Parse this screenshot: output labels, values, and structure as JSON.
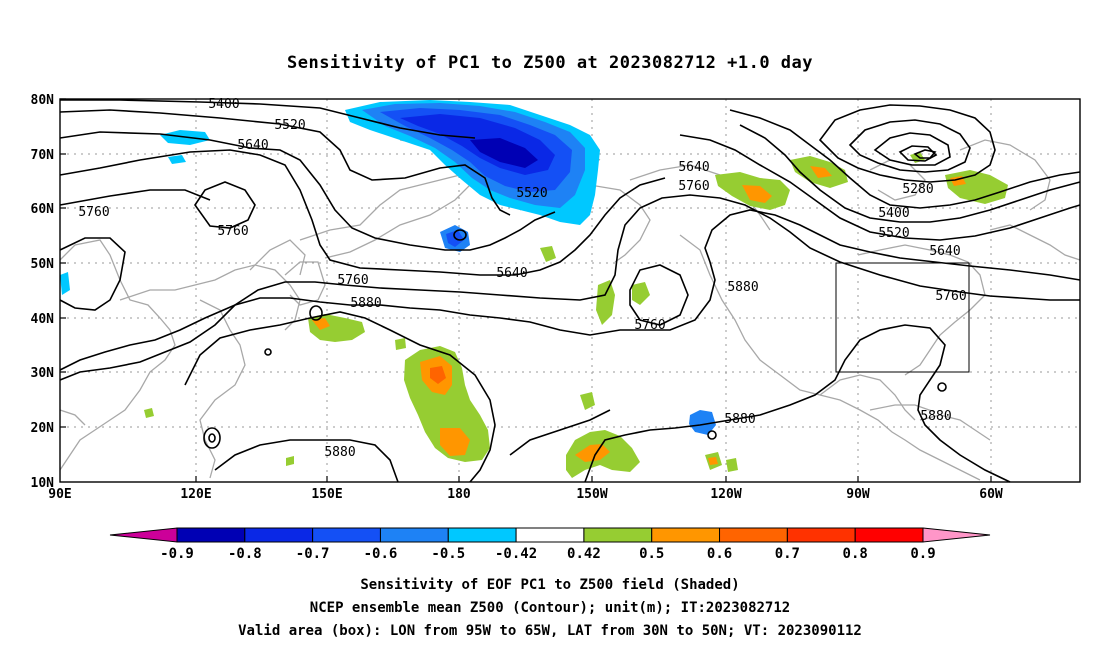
{
  "title": "Sensitivity of PC1 to Z500 at 2023082712 +1.0 day",
  "map": {
    "lon_labels": [
      "90E",
      "120E",
      "150E",
      "180",
      "150W",
      "120W",
      "90W",
      "60W"
    ],
    "lat_labels": [
      "80N",
      "70N",
      "60N",
      "50N",
      "40N",
      "30N",
      "20N",
      "10N"
    ],
    "contour_labels": [
      "5400",
      "5520",
      "5640",
      "5760",
      "5760",
      "5520",
      "5640",
      "5760",
      "5880",
      "5760",
      "5880",
      "5640",
      "5760",
      "5280",
      "5400",
      "5520",
      "5640",
      "5760",
      "5880",
      "5880",
      "5880"
    ],
    "box": {
      "lon_west": "95W",
      "lon_east": "65W",
      "lat_south": "30N",
      "lat_north": "50N"
    }
  },
  "colorbar": {
    "labels": [
      "-0.9",
      "-0.8",
      "-0.7",
      "-0.6",
      "-0.5",
      "-0.42",
      "0.42",
      "0.5",
      "0.6",
      "0.7",
      "0.8",
      "0.9"
    ],
    "colors": [
      "#cc0099",
      "#0000b4",
      "#0a28e6",
      "#1450f5",
      "#1e82f5",
      "#00c8ff",
      "#ffffff",
      "#96cd32",
      "#ff9600",
      "#ff6400",
      "#ff3200",
      "#ff0000",
      "#ff96c8"
    ]
  },
  "captions": [
    "Sensitivity of EOF PC1 to Z500 field (Shaded)",
    "NCEP ensemble mean Z500 (Contour); unit(m); IT:2023082712",
    "Valid area (box): LON from 95W to 65W, LAT from 30N to 50N; VT: 2023090112"
  ],
  "colors": {
    "contour": "#000000",
    "coast": "#a8a8a8",
    "grid": "#9a9a9a"
  }
}
